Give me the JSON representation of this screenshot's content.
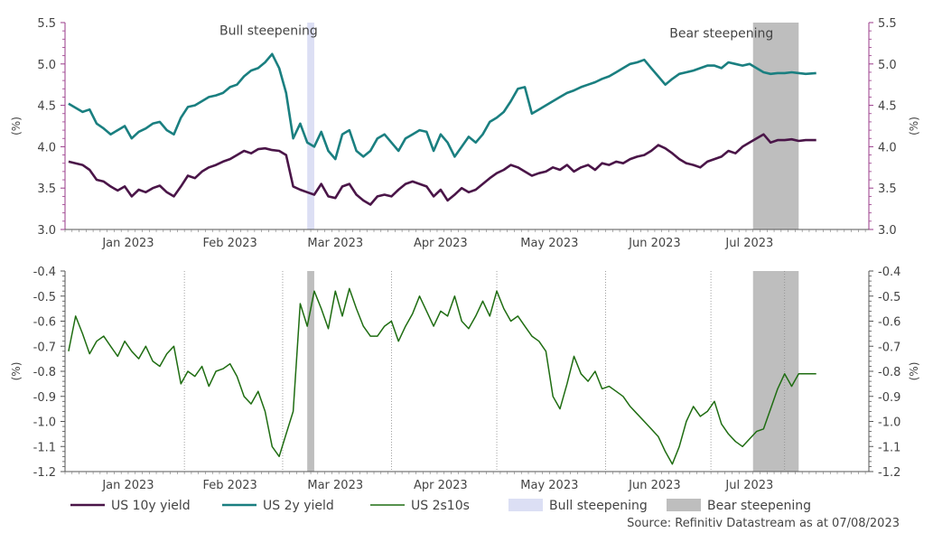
{
  "chart_data": [
    {
      "type": "line",
      "panel": "top",
      "ylabel": "(%)",
      "ylim": [
        3.0,
        5.5
      ],
      "yticks": [
        "3.0",
        "3.5",
        "4.0",
        "4.5",
        "5.0",
        "5.5"
      ],
      "x_range": [
        "2022-12-30",
        "2023-07-31"
      ],
      "month_labels": [
        {
          "label": "Jan 2023",
          "date": "2023-01-16"
        },
        {
          "label": "Feb 2023",
          "date": "2023-02-14"
        },
        {
          "label": "Mar 2023",
          "date": "2023-03-16"
        },
        {
          "label": "Apr 2023",
          "date": "2023-04-15"
        },
        {
          "label": "May 2023",
          "date": "2023-05-16"
        },
        {
          "label": "Jun 2023",
          "date": "2023-06-15"
        },
        {
          "label": "Jul 2023",
          "date": "2023-07-12"
        }
      ],
      "shaded_regions": [
        {
          "name": "Bull steepening",
          "start": "2023-03-08",
          "end": "2023-03-10",
          "color": "#dcdff4"
        },
        {
          "name": "Bear steepening",
          "start": "2023-07-13",
          "end": "2023-07-26",
          "color": "#bebebe"
        }
      ],
      "annotations": [
        {
          "text": "Bull steepening",
          "date": "2023-02-25",
          "y": 5.35
        },
        {
          "text": "Bear steepening",
          "date": "2023-07-04",
          "y": 5.32
        }
      ],
      "series": [
        {
          "name": "US 10y yield",
          "color": "#4a1548",
          "x": [
            "2022-12-30",
            "2023-01-03",
            "2023-01-05",
            "2023-01-07",
            "2023-01-09",
            "2023-01-11",
            "2023-01-13",
            "2023-01-15",
            "2023-01-17",
            "2023-01-19",
            "2023-01-21",
            "2023-01-23",
            "2023-01-25",
            "2023-01-27",
            "2023-01-29",
            "2023-01-31",
            "2023-02-02",
            "2023-02-04",
            "2023-02-06",
            "2023-02-08",
            "2023-02-10",
            "2023-02-12",
            "2023-02-14",
            "2023-02-16",
            "2023-02-18",
            "2023-02-20",
            "2023-02-22",
            "2023-02-24",
            "2023-02-26",
            "2023-02-28",
            "2023-03-02",
            "2023-03-04",
            "2023-03-06",
            "2023-03-08",
            "2023-03-10",
            "2023-03-12",
            "2023-03-14",
            "2023-03-16",
            "2023-03-18",
            "2023-03-20",
            "2023-03-22",
            "2023-03-24",
            "2023-03-26",
            "2023-03-28",
            "2023-03-30",
            "2023-04-01",
            "2023-04-03",
            "2023-04-05",
            "2023-04-07",
            "2023-04-09",
            "2023-04-11",
            "2023-04-13",
            "2023-04-15",
            "2023-04-17",
            "2023-04-19",
            "2023-04-21",
            "2023-04-23",
            "2023-04-25",
            "2023-04-27",
            "2023-04-29",
            "2023-05-01",
            "2023-05-03",
            "2023-05-05",
            "2023-05-07",
            "2023-05-09",
            "2023-05-11",
            "2023-05-13",
            "2023-05-15",
            "2023-05-17",
            "2023-05-19",
            "2023-05-21",
            "2023-05-23",
            "2023-05-25",
            "2023-05-27",
            "2023-05-29",
            "2023-05-31",
            "2023-06-02",
            "2023-06-04",
            "2023-06-06",
            "2023-06-08",
            "2023-06-10",
            "2023-06-12",
            "2023-06-14",
            "2023-06-16",
            "2023-06-18",
            "2023-06-20",
            "2023-06-22",
            "2023-06-24",
            "2023-06-26",
            "2023-06-28",
            "2023-06-30",
            "2023-07-02",
            "2023-07-04",
            "2023-07-06",
            "2023-07-08",
            "2023-07-10",
            "2023-07-12",
            "2023-07-14",
            "2023-07-16",
            "2023-07-18",
            "2023-07-20",
            "2023-07-22",
            "2023-07-24",
            "2023-07-26",
            "2023-07-28",
            "2023-07-31"
          ],
          "values": [
            3.82,
            3.78,
            3.72,
            3.6,
            3.58,
            3.52,
            3.47,
            3.52,
            3.4,
            3.48,
            3.45,
            3.5,
            3.53,
            3.45,
            3.4,
            3.52,
            3.65,
            3.62,
            3.7,
            3.75,
            3.78,
            3.82,
            3.85,
            3.9,
            3.95,
            3.92,
            3.97,
            3.98,
            3.96,
            3.95,
            3.9,
            3.52,
            3.48,
            3.45,
            3.42,
            3.55,
            3.4,
            3.38,
            3.52,
            3.55,
            3.42,
            3.35,
            3.3,
            3.4,
            3.42,
            3.4,
            3.48,
            3.55,
            3.58,
            3.55,
            3.52,
            3.4,
            3.48,
            3.35,
            3.42,
            3.5,
            3.45,
            3.48,
            3.55,
            3.62,
            3.68,
            3.72,
            3.78,
            3.75,
            3.7,
            3.65,
            3.68,
            3.7,
            3.75,
            3.72,
            3.78,
            3.7,
            3.75,
            3.78,
            3.72,
            3.8,
            3.78,
            3.82,
            3.8,
            3.85,
            3.88,
            3.9,
            3.95,
            4.02,
            3.98,
            3.92,
            3.85,
            3.8,
            3.78,
            3.75,
            3.82,
            3.85,
            3.88,
            3.95,
            3.92,
            4.0,
            4.05,
            4.1,
            4.15,
            4.05,
            4.08,
            4.08,
            4.09,
            4.07,
            4.08,
            4.08
          ]
        },
        {
          "name": "US 2y yield",
          "color": "#1a7f80",
          "x": [
            "2022-12-30",
            "2023-01-03",
            "2023-01-05",
            "2023-01-07",
            "2023-01-09",
            "2023-01-11",
            "2023-01-13",
            "2023-01-15",
            "2023-01-17",
            "2023-01-19",
            "2023-01-21",
            "2023-01-23",
            "2023-01-25",
            "2023-01-27",
            "2023-01-29",
            "2023-01-31",
            "2023-02-02",
            "2023-02-04",
            "2023-02-06",
            "2023-02-08",
            "2023-02-10",
            "2023-02-12",
            "2023-02-14",
            "2023-02-16",
            "2023-02-18",
            "2023-02-20",
            "2023-02-22",
            "2023-02-24",
            "2023-02-26",
            "2023-02-28",
            "2023-03-02",
            "2023-03-04",
            "2023-03-06",
            "2023-03-08",
            "2023-03-10",
            "2023-03-12",
            "2023-03-14",
            "2023-03-16",
            "2023-03-18",
            "2023-03-20",
            "2023-03-22",
            "2023-03-24",
            "2023-03-26",
            "2023-03-28",
            "2023-03-30",
            "2023-04-01",
            "2023-04-03",
            "2023-04-05",
            "2023-04-07",
            "2023-04-09",
            "2023-04-11",
            "2023-04-13",
            "2023-04-15",
            "2023-04-17",
            "2023-04-19",
            "2023-04-21",
            "2023-04-23",
            "2023-04-25",
            "2023-04-27",
            "2023-04-29",
            "2023-05-01",
            "2023-05-03",
            "2023-05-05",
            "2023-05-07",
            "2023-05-09",
            "2023-05-11",
            "2023-05-13",
            "2023-05-15",
            "2023-05-17",
            "2023-05-19",
            "2023-05-21",
            "2023-05-23",
            "2023-05-25",
            "2023-05-27",
            "2023-05-29",
            "2023-05-31",
            "2023-06-02",
            "2023-06-04",
            "2023-06-06",
            "2023-06-08",
            "2023-06-10",
            "2023-06-12",
            "2023-06-14",
            "2023-06-16",
            "2023-06-18",
            "2023-06-20",
            "2023-06-22",
            "2023-06-24",
            "2023-06-26",
            "2023-06-28",
            "2023-06-30",
            "2023-07-02",
            "2023-07-04",
            "2023-07-06",
            "2023-07-08",
            "2023-07-10",
            "2023-07-12",
            "2023-07-14",
            "2023-07-16",
            "2023-07-18",
            "2023-07-20",
            "2023-07-22",
            "2023-07-24",
            "2023-07-26",
            "2023-07-28",
            "2023-07-31"
          ],
          "values": [
            4.52,
            4.42,
            4.45,
            4.28,
            4.22,
            4.15,
            4.2,
            4.25,
            4.1,
            4.18,
            4.22,
            4.28,
            4.3,
            4.2,
            4.15,
            4.35,
            4.48,
            4.5,
            4.55,
            4.6,
            4.62,
            4.65,
            4.72,
            4.75,
            4.85,
            4.92,
            4.95,
            5.02,
            5.12,
            4.95,
            4.65,
            4.1,
            4.28,
            4.05,
            4.0,
            4.18,
            3.95,
            3.85,
            4.15,
            4.2,
            3.95,
            3.88,
            3.95,
            4.1,
            4.15,
            4.05,
            3.95,
            4.1,
            4.15,
            4.2,
            4.18,
            3.95,
            4.15,
            4.05,
            3.88,
            4.0,
            4.12,
            4.05,
            4.15,
            4.3,
            4.35,
            4.42,
            4.55,
            4.7,
            4.72,
            4.4,
            4.45,
            4.5,
            4.55,
            4.6,
            4.65,
            4.68,
            4.72,
            4.75,
            4.78,
            4.82,
            4.85,
            4.9,
            4.95,
            5.0,
            5.02,
            5.05,
            4.95,
            4.85,
            4.75,
            4.82,
            4.88,
            4.9,
            4.92,
            4.95,
            4.98,
            4.98,
            4.95,
            5.02,
            5.0,
            4.98,
            5.0,
            4.95,
            4.9,
            4.88,
            4.89,
            4.89,
            4.9,
            4.89,
            4.88,
            4.89
          ]
        }
      ]
    },
    {
      "type": "line",
      "panel": "bottom",
      "ylabel": "(%)",
      "ylim": [
        -1.2,
        -0.4
      ],
      "yticks": [
        "-1.2",
        "-1.1",
        "-1.0",
        "-0.9",
        "-0.8",
        "-0.7",
        "-0.6",
        "-0.5",
        "-0.4"
      ],
      "x_range": [
        "2022-12-30",
        "2023-07-31"
      ],
      "month_labels": [
        {
          "label": "Jan 2023",
          "date": "2023-01-16"
        },
        {
          "label": "Feb 2023",
          "date": "2023-02-14"
        },
        {
          "label": "Mar 2023",
          "date": "2023-03-16"
        },
        {
          "label": "Apr 2023",
          "date": "2023-04-15"
        },
        {
          "label": "May 2023",
          "date": "2023-05-16"
        },
        {
          "label": "Jun 2023",
          "date": "2023-06-15"
        },
        {
          "label": "Jul 2023",
          "date": "2023-07-12"
        }
      ],
      "gridlines": [
        "2023-02-01",
        "2023-03-01",
        "2023-04-01",
        "2023-05-01",
        "2023-06-01",
        "2023-07-01",
        "2023-07-22"
      ],
      "shaded_regions": [
        {
          "name": "Bull steepening",
          "start": "2023-03-08",
          "end": "2023-03-10",
          "color": "#bebebe"
        },
        {
          "name": "Bear steepening",
          "start": "2023-07-13",
          "end": "2023-07-26",
          "color": "#bebebe"
        }
      ],
      "series": [
        {
          "name": "US 2s10s",
          "color": "#1f6d12",
          "x": [
            "2022-12-30",
            "2023-01-01",
            "2023-01-03",
            "2023-01-05",
            "2023-01-07",
            "2023-01-09",
            "2023-01-11",
            "2023-01-13",
            "2023-01-15",
            "2023-01-17",
            "2023-01-19",
            "2023-01-21",
            "2023-01-23",
            "2023-01-25",
            "2023-01-27",
            "2023-01-29",
            "2023-01-31",
            "2023-02-02",
            "2023-02-04",
            "2023-02-06",
            "2023-02-08",
            "2023-02-10",
            "2023-02-12",
            "2023-02-14",
            "2023-02-16",
            "2023-02-18",
            "2023-02-20",
            "2023-02-22",
            "2023-02-24",
            "2023-02-26",
            "2023-02-28",
            "2023-03-02",
            "2023-03-04",
            "2023-03-06",
            "2023-03-08",
            "2023-03-10",
            "2023-03-12",
            "2023-03-14",
            "2023-03-16",
            "2023-03-18",
            "2023-03-20",
            "2023-03-22",
            "2023-03-24",
            "2023-03-26",
            "2023-03-28",
            "2023-03-30",
            "2023-04-01",
            "2023-04-03",
            "2023-04-05",
            "2023-04-07",
            "2023-04-09",
            "2023-04-11",
            "2023-04-13",
            "2023-04-15",
            "2023-04-17",
            "2023-04-19",
            "2023-04-21",
            "2023-04-23",
            "2023-04-25",
            "2023-04-27",
            "2023-04-29",
            "2023-05-01",
            "2023-05-03",
            "2023-05-05",
            "2023-05-07",
            "2023-05-09",
            "2023-05-11",
            "2023-05-13",
            "2023-05-15",
            "2023-05-17",
            "2023-05-19",
            "2023-05-21",
            "2023-05-23",
            "2023-05-25",
            "2023-05-27",
            "2023-05-29",
            "2023-05-31",
            "2023-06-02",
            "2023-06-04",
            "2023-06-06",
            "2023-06-08",
            "2023-06-10",
            "2023-06-12",
            "2023-06-14",
            "2023-06-16",
            "2023-06-18",
            "2023-06-20",
            "2023-06-22",
            "2023-06-24",
            "2023-06-26",
            "2023-06-28",
            "2023-06-30",
            "2023-07-02",
            "2023-07-04",
            "2023-07-06",
            "2023-07-08",
            "2023-07-10",
            "2023-07-12",
            "2023-07-14",
            "2023-07-16",
            "2023-07-18",
            "2023-07-20",
            "2023-07-22",
            "2023-07-24",
            "2023-07-26",
            "2023-07-28",
            "2023-07-31"
          ],
          "values": [
            -0.72,
            -0.58,
            -0.65,
            -0.73,
            -0.68,
            -0.66,
            -0.7,
            -0.74,
            -0.68,
            -0.72,
            -0.75,
            -0.7,
            -0.76,
            -0.78,
            -0.73,
            -0.7,
            -0.85,
            -0.8,
            -0.82,
            -0.78,
            -0.86,
            -0.8,
            -0.79,
            -0.77,
            -0.82,
            -0.9,
            -0.93,
            -0.88,
            -0.96,
            -1.1,
            -1.14,
            -1.05,
            -0.96,
            -0.53,
            -0.62,
            -0.48,
            -0.55,
            -0.63,
            -0.48,
            -0.58,
            -0.47,
            -0.55,
            -0.62,
            -0.66,
            -0.66,
            -0.62,
            -0.6,
            -0.68,
            -0.62,
            -0.57,
            -0.5,
            -0.56,
            -0.62,
            -0.56,
            -0.58,
            -0.5,
            -0.6,
            -0.63,
            -0.58,
            -0.52,
            -0.58,
            -0.48,
            -0.55,
            -0.6,
            -0.58,
            -0.62,
            -0.66,
            -0.68,
            -0.72,
            -0.9,
            -0.95,
            -0.85,
            -0.74,
            -0.81,
            -0.84,
            -0.8,
            -0.87,
            -0.86,
            -0.88,
            -0.9,
            -0.94,
            -0.97,
            -1.0,
            -1.03,
            -1.06,
            -1.12,
            -1.17,
            -1.1,
            -1.0,
            -0.94,
            -0.98,
            -0.96,
            -0.92,
            -1.01,
            -1.05,
            -1.08,
            -1.1,
            -1.07,
            -1.04,
            -1.03,
            -0.95,
            -0.87,
            -0.81,
            -0.86,
            -0.81,
            -0.81,
            -0.81
          ]
        }
      ]
    }
  ],
  "legend": [
    {
      "label": "US 10y yield",
      "kind": "line",
      "color": "#4a1548"
    },
    {
      "label": "US 2y yield",
      "kind": "line",
      "color": "#1a7f80"
    },
    {
      "label": "US 2s10s",
      "kind": "line",
      "color": "#1f6d12"
    },
    {
      "label": "Bull steepening",
      "kind": "box",
      "color": "#dcdff4"
    },
    {
      "label": "Bear steepening",
      "kind": "box",
      "color": "#bebebe"
    }
  ],
  "source": "Source: Refinitiv Datastream as at 07/08/2023",
  "colors": {
    "axis_top": "#9a3a8a",
    "axis_bottom": "#555555",
    "grid": "#8a8a8a"
  }
}
